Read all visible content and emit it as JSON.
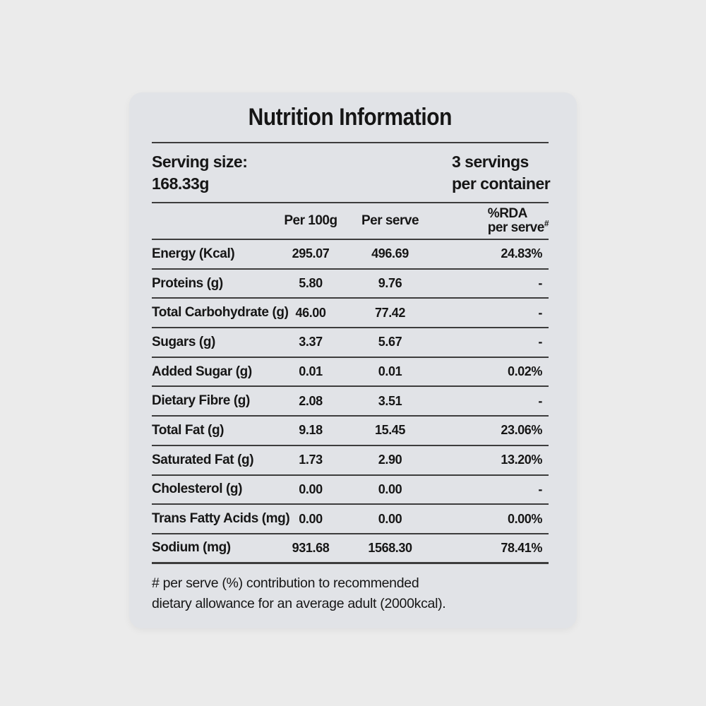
{
  "colors": {
    "page_background": "#ebebeb",
    "card_background": "#e1e3e7",
    "rule": "#3d3d3d",
    "text": "#161616"
  },
  "title": "Nutrition Information",
  "serving": {
    "size_label": "Serving size:",
    "size_value": "168.33g",
    "count_line1": "3 servings",
    "count_line2": "per container"
  },
  "table": {
    "columns": {
      "per_100g": "Per 100g",
      "per_serve": "Per serve",
      "rda_line1": "%RDA",
      "rda_line2": "per serve",
      "rda_suffix": "#"
    },
    "rows": [
      {
        "label": "Energy (Kcal)",
        "per_100g": "295.07",
        "per_serve": "496.69",
        "rda": "24.83%"
      },
      {
        "label": "Proteins (g)",
        "per_100g": "5.80",
        "per_serve": "9.76",
        "rda": "-"
      },
      {
        "label": "Total Carbohydrate (g)",
        "per_100g": "46.00",
        "per_serve": "77.42",
        "rda": "-"
      },
      {
        "label": "Sugars (g)",
        "per_100g": "3.37",
        "per_serve": "5.67",
        "rda": "-"
      },
      {
        "label": "Added Sugar (g)",
        "per_100g": "0.01",
        "per_serve": "0.01",
        "rda": "0.02%"
      },
      {
        "label": "Dietary Fibre (g)",
        "per_100g": "2.08",
        "per_serve": "3.51",
        "rda": "-"
      },
      {
        "label": "Total Fat (g)",
        "per_100g": "9.18",
        "per_serve": "15.45",
        "rda": "23.06%"
      },
      {
        "label": "Saturated Fat (g)",
        "per_100g": "1.73",
        "per_serve": "2.90",
        "rda": "13.20%"
      },
      {
        "label": "Cholesterol (g)",
        "per_100g": "0.00",
        "per_serve": "0.00",
        "rda": "-"
      },
      {
        "label": "Trans Fatty Acids (mg)",
        "per_100g": "0.00",
        "per_serve": "0.00",
        "rda": "0.00%"
      },
      {
        "label": "Sodium (mg)",
        "per_100g": "931.68",
        "per_serve": "1568.30",
        "rda": "78.41%"
      }
    ]
  },
  "footnote": {
    "line1": "# per serve (%) contribution to recommended",
    "line2": "dietary allowance for an average adult (2000kcal)."
  }
}
